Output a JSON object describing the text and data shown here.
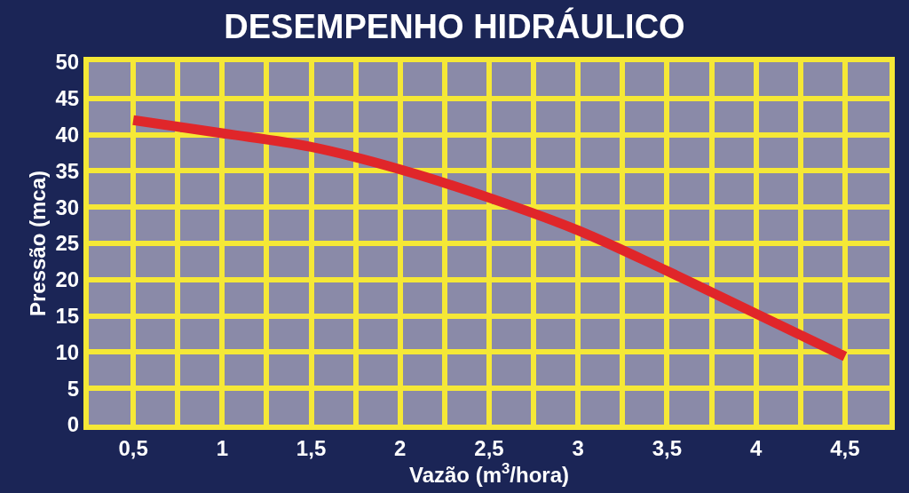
{
  "chart_data": {
    "type": "line",
    "title": "DESEMPENHO HIDRÁULICO",
    "xlabel": "Vazão (m$^{3}$/hora)",
    "ylabel": "Pressão (mca)",
    "x": [
      0.5,
      1,
      1.5,
      2,
      2.5,
      3,
      3.5,
      4,
      4.5
    ],
    "series": [
      {
        "color": "#e0262a",
        "values": [
          42,
          40.2,
          38.3,
          35.2,
          31.3,
          26.8,
          21.2,
          15.3,
          9.4
        ]
      }
    ],
    "xlim": [
      0.25,
      4.75
    ],
    "xticks": [
      {
        "value": 0.5,
        "label": "0,5"
      },
      {
        "value": 0.75,
        "label": null
      },
      {
        "value": 1,
        "label": "1"
      },
      {
        "value": 1.25,
        "label": null
      },
      {
        "value": 1.5,
        "label": "1,5"
      },
      {
        "value": 1.75,
        "label": null
      },
      {
        "value": 2,
        "label": "2"
      },
      {
        "value": 2.25,
        "label": null
      },
      {
        "value": 2.5,
        "label": "2,5"
      },
      {
        "value": 2.75,
        "label": null
      },
      {
        "value": 3,
        "label": "3"
      },
      {
        "value": 3.25,
        "label": null
      },
      {
        "value": 3.5,
        "label": "3,5"
      },
      {
        "value": 3.75,
        "label": null
      },
      {
        "value": 4,
        "label": "4"
      },
      {
        "value": 4.25,
        "label": null
      },
      {
        "value": 4.5,
        "label": "4,5"
      }
    ],
    "ylim": [
      0,
      50
    ],
    "yticks": [
      0,
      5,
      10,
      15,
      20,
      25,
      30,
      35,
      40,
      45,
      50
    ],
    "grid": true,
    "marker": "none",
    "line_style": "solid"
  }
}
